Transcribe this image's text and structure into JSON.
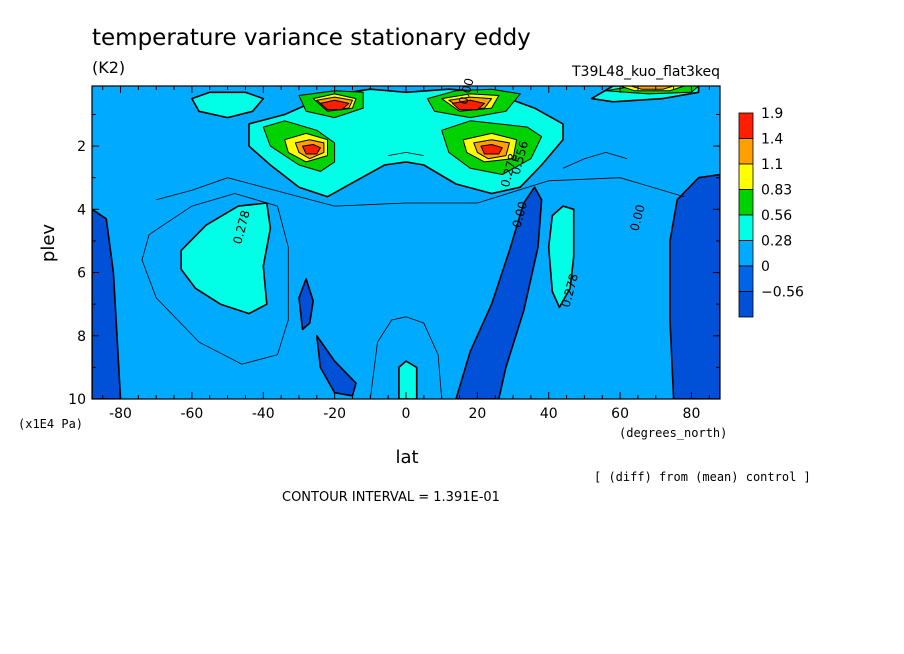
{
  "chart_data": {
    "type": "contour",
    "title": "temperature variance stationary eddy",
    "units": "(K2)",
    "run_label": "T39L48_kuo_flat3keq",
    "xlabel": "lat",
    "ylabel": "plev",
    "x_units_label": "(degrees_north)",
    "y_units_label": "(x1E4 Pa)",
    "xlim": [
      -88,
      88
    ],
    "ylim": [
      10,
      0.1
    ],
    "x_ticks": [
      -80,
      -60,
      -40,
      -20,
      0,
      20,
      40,
      60,
      80
    ],
    "y_ticks": [
      2,
      4,
      6,
      8,
      10
    ],
    "contour_interval_text": "CONTOUR INTERVAL = 1.391E-01",
    "diff_text": "[ (diff) from (mean) control ]",
    "legend": {
      "labels": [
        "1.9",
        "1.4",
        "1.1",
        "0.83",
        "0.56",
        "0.28",
        "0",
        "−0.56"
      ],
      "colors": [
        "#ff1e00",
        "#ffa000",
        "#ffff00",
        "#00d200",
        "#00ffe6",
        "#00aaff",
        "#0064e6",
        "#0050d8"
      ]
    },
    "contour_labels": [
      {
        "text": "0.278",
        "lat": -45,
        "plev": 4.6
      },
      {
        "text": "0.278",
        "lat": 47,
        "plev": 6.6
      },
      {
        "text": "0.00",
        "lat": 33,
        "plev": 4.2
      },
      {
        "text": "0.00",
        "lat": 66,
        "plev": 4.3
      },
      {
        "text": "0.278",
        "lat": 30,
        "plev": 2.8
      },
      {
        "text": "0.556",
        "lat": 33,
        "plev": 2.4
      },
      {
        "text": "0.00",
        "lat": 18,
        "plev": 0.3
      }
    ],
    "level_colors": {
      "neg": "#0050d8",
      "l0": "#00aaff",
      "l1": "#00ffe6",
      "l2": "#00d200",
      "l3": "#ffff00",
      "l4": "#ffa000",
      "l5": "#ff1e00"
    },
    "regions": [
      {
        "level": "neg",
        "pts": [
          [
            -88,
            4.0
          ],
          [
            -84,
            4.3
          ],
          [
            -82,
            6
          ],
          [
            -81,
            8
          ],
          [
            -80,
            10
          ],
          [
            -88,
            10
          ]
        ]
      },
      {
        "level": "neg",
        "pts": [
          [
            -30,
            6.8
          ],
          [
            -28,
            6.2
          ],
          [
            -26,
            6.9
          ],
          [
            -27,
            7.6
          ],
          [
            -29,
            7.8
          ]
        ]
      },
      {
        "level": "neg",
        "pts": [
          [
            -25,
            8.0
          ],
          [
            -20,
            8.8
          ],
          [
            -14,
            9.5
          ],
          [
            -15,
            9.9
          ],
          [
            -20,
            9.8
          ],
          [
            -24,
            9.0
          ]
        ]
      },
      {
        "level": "neg",
        "pts": [
          [
            14,
            10
          ],
          [
            18,
            8.5
          ],
          [
            24,
            7.0
          ],
          [
            29,
            5.3
          ],
          [
            33,
            3.8
          ],
          [
            36,
            3.3
          ],
          [
            38,
            3.7
          ],
          [
            37,
            5.2
          ],
          [
            33,
            7.2
          ],
          [
            28,
            9.0
          ],
          [
            26,
            10
          ]
        ]
      },
      {
        "level": "neg",
        "pts": [
          [
            75,
            10
          ],
          [
            74,
            7.5
          ],
          [
            74,
            5.0
          ],
          [
            76,
            3.7
          ],
          [
            82,
            3.0
          ],
          [
            88,
            2.9
          ],
          [
            88,
            10
          ]
        ]
      },
      {
        "level": "l1",
        "pts": [
          [
            -63,
            5.3
          ],
          [
            -56,
            4.5
          ],
          [
            -47,
            3.9
          ],
          [
            -39,
            3.8
          ],
          [
            -38,
            4.6
          ],
          [
            -40,
            5.8
          ],
          [
            -39,
            7.0
          ],
          [
            -44,
            7.3
          ],
          [
            -52,
            7.0
          ],
          [
            -59,
            6.5
          ],
          [
            -63,
            5.9
          ]
        ]
      },
      {
        "level": "l1",
        "pts": [
          [
            41,
            4.2
          ],
          [
            44,
            3.9
          ],
          [
            47,
            4.0
          ],
          [
            47,
            5.5
          ],
          [
            46,
            6.5
          ],
          [
            43,
            7.1
          ],
          [
            41,
            6.6
          ],
          [
            40,
            5.2
          ]
        ]
      },
      {
        "level": "l1",
        "pts": [
          [
            -2,
            10
          ],
          [
            -2,
            9.0
          ],
          [
            0,
            8.8
          ],
          [
            3,
            9.0
          ],
          [
            3,
            10
          ]
        ]
      },
      {
        "level": "l1",
        "pts": [
          [
            -60,
            0.5
          ],
          [
            -55,
            0.3
          ],
          [
            -45,
            0.3
          ],
          [
            -40,
            0.5
          ],
          [
            -43,
            0.9
          ],
          [
            -50,
            1.1
          ],
          [
            -58,
            0.9
          ]
        ]
      },
      {
        "level": "l1",
        "pts": [
          [
            -44,
            1.3
          ],
          [
            -34,
            1.0
          ],
          [
            -22,
            0.4
          ],
          [
            -10,
            0.2
          ],
          [
            0,
            0.3
          ],
          [
            12,
            0.2
          ],
          [
            24,
            0.3
          ],
          [
            36,
            0.8
          ],
          [
            44,
            1.3
          ],
          [
            44,
            1.8
          ],
          [
            38,
            2.6
          ],
          [
            32,
            3.3
          ],
          [
            24,
            3.5
          ],
          [
            14,
            3.2
          ],
          [
            5,
            2.6
          ],
          [
            0,
            2.5
          ],
          [
            -6,
            2.6
          ],
          [
            -14,
            3.1
          ],
          [
            -22,
            3.6
          ],
          [
            -30,
            3.3
          ],
          [
            -38,
            2.6
          ],
          [
            -44,
            2.0
          ]
        ]
      },
      {
        "level": "l1",
        "pts": [
          [
            52,
            0.5
          ],
          [
            58,
            0.1
          ],
          [
            82,
            0.1
          ],
          [
            82,
            0.3
          ],
          [
            72,
            0.5
          ],
          [
            58,
            0.6
          ]
        ]
      },
      {
        "level": "l2",
        "pts": [
          [
            -40,
            1.4
          ],
          [
            -34,
            1.2
          ],
          [
            -25,
            1.5
          ],
          [
            -20,
            1.9
          ],
          [
            -20,
            2.5
          ],
          [
            -24,
            2.8
          ],
          [
            -30,
            2.6
          ],
          [
            -38,
            2.0
          ]
        ]
      },
      {
        "level": "l2",
        "pts": [
          [
            10,
            1.5
          ],
          [
            18,
            1.2
          ],
          [
            26,
            1.3
          ],
          [
            34,
            1.4
          ],
          [
            38,
            1.7
          ],
          [
            35,
            2.4
          ],
          [
            27,
            2.9
          ],
          [
            18,
            2.7
          ],
          [
            12,
            2.2
          ]
        ]
      },
      {
        "level": "l2",
        "pts": [
          [
            -30,
            0.4
          ],
          [
            -20,
            0.25
          ],
          [
            -12,
            0.3
          ],
          [
            -12,
            0.8
          ],
          [
            -20,
            1.1
          ],
          [
            -28,
            0.9
          ]
        ]
      },
      {
        "level": "l2",
        "pts": [
          [
            6,
            0.5
          ],
          [
            14,
            0.25
          ],
          [
            24,
            0.2
          ],
          [
            32,
            0.35
          ],
          [
            28,
            0.9
          ],
          [
            18,
            1.1
          ],
          [
            8,
            0.9
          ]
        ]
      },
      {
        "level": "l2",
        "pts": [
          [
            56,
            0.25
          ],
          [
            64,
            0.1
          ],
          [
            82,
            0.1
          ],
          [
            80,
            0.3
          ],
          [
            68,
            0.35
          ]
        ]
      },
      {
        "level": "l3",
        "pts": [
          [
            -34,
            1.8
          ],
          [
            -28,
            1.6
          ],
          [
            -22,
            1.8
          ],
          [
            -22,
            2.3
          ],
          [
            -28,
            2.5
          ],
          [
            -33,
            2.2
          ]
        ]
      },
      {
        "level": "l3",
        "pts": [
          [
            16,
            1.8
          ],
          [
            24,
            1.6
          ],
          [
            31,
            1.8
          ],
          [
            30,
            2.4
          ],
          [
            22,
            2.5
          ],
          [
            17,
            2.2
          ]
        ]
      },
      {
        "level": "l3",
        "pts": [
          [
            -26,
            0.5
          ],
          [
            -20,
            0.35
          ],
          [
            -14,
            0.5
          ],
          [
            -15,
            0.8
          ],
          [
            -22,
            0.9
          ]
        ]
      },
      {
        "level": "l3",
        "pts": [
          [
            10,
            0.5
          ],
          [
            18,
            0.35
          ],
          [
            26,
            0.4
          ],
          [
            24,
            0.8
          ],
          [
            15,
            0.9
          ]
        ]
      },
      {
        "level": "l3",
        "pts": [
          [
            60,
            0.1
          ],
          [
            78,
            0.1
          ],
          [
            74,
            0.25
          ],
          [
            64,
            0.25
          ]
        ]
      },
      {
        "level": "l4",
        "pts": [
          [
            -31,
            1.9
          ],
          [
            -27,
            1.8
          ],
          [
            -23,
            1.9
          ],
          [
            -23,
            2.2
          ],
          [
            -27,
            2.4
          ],
          [
            -30,
            2.2
          ]
        ]
      },
      {
        "level": "l4",
        "pts": [
          [
            19,
            1.9
          ],
          [
            24,
            1.8
          ],
          [
            29,
            1.9
          ],
          [
            28,
            2.3
          ],
          [
            23,
            2.4
          ],
          [
            20,
            2.2
          ]
        ]
      },
      {
        "level": "l4",
        "pts": [
          [
            -25,
            0.55
          ],
          [
            -20,
            0.45
          ],
          [
            -15,
            0.55
          ],
          [
            -16,
            0.8
          ],
          [
            -22,
            0.85
          ]
        ]
      },
      {
        "level": "l4",
        "pts": [
          [
            12,
            0.55
          ],
          [
            18,
            0.45
          ],
          [
            24,
            0.5
          ],
          [
            22,
            0.8
          ],
          [
            16,
            0.85
          ]
        ]
      },
      {
        "level": "l4",
        "pts": [
          [
            63,
            0.1
          ],
          [
            75,
            0.1
          ],
          [
            72,
            0.2
          ],
          [
            66,
            0.2
          ]
        ]
      },
      {
        "level": "l5",
        "pts": [
          [
            -29,
            2.0
          ],
          [
            -26,
            1.95
          ],
          [
            -24,
            2.05
          ],
          [
            -25,
            2.25
          ],
          [
            -28,
            2.25
          ]
        ]
      },
      {
        "level": "l5",
        "pts": [
          [
            21,
            2.0
          ],
          [
            24,
            1.95
          ],
          [
            27,
            2.05
          ],
          [
            26,
            2.25
          ],
          [
            22,
            2.25
          ]
        ]
      },
      {
        "level": "l5",
        "pts": [
          [
            -24,
            0.65
          ],
          [
            -20,
            0.55
          ],
          [
            -16,
            0.65
          ],
          [
            -18,
            0.85
          ],
          [
            -22,
            0.85
          ]
        ]
      },
      {
        "level": "l5",
        "pts": [
          [
            13,
            0.65
          ],
          [
            18,
            0.55
          ],
          [
            22,
            0.65
          ],
          [
            20,
            0.85
          ],
          [
            15,
            0.85
          ]
        ]
      }
    ],
    "contour_lines": [
      {
        "pts": [
          [
            -72,
            4.8
          ],
          [
            -60,
            3.9
          ],
          [
            -48,
            3.5
          ],
          [
            -36,
            3.9
          ],
          [
            -33,
            5.2
          ],
          [
            -33,
            7.5
          ],
          [
            -36,
            8.6
          ],
          [
            -46,
            8.9
          ],
          [
            -58,
            8.2
          ],
          [
            -70,
            6.8
          ],
          [
            -74,
            5.6
          ]
        ],
        "closed": true
      },
      {
        "pts": [
          [
            -10,
            10
          ],
          [
            -8,
            8.2
          ],
          [
            -4,
            7.5
          ],
          [
            0,
            7.4
          ],
          [
            5,
            7.6
          ],
          [
            9,
            8.6
          ],
          [
            10,
            10
          ]
        ],
        "closed": false
      },
      {
        "pts": [
          [
            -70,
            3.7
          ],
          [
            -60,
            3.4
          ],
          [
            -50,
            3.0
          ],
          [
            -40,
            3.3
          ],
          [
            -20,
            3.9
          ],
          [
            0,
            3.8
          ],
          [
            20,
            3.8
          ],
          [
            40,
            3.1
          ],
          [
            60,
            3.0
          ],
          [
            78,
            3.6
          ]
        ],
        "closed": false
      },
      {
        "pts": [
          [
            44,
            2.7
          ],
          [
            50,
            2.4
          ],
          [
            56,
            2.2
          ],
          [
            62,
            2.4
          ]
        ],
        "closed": false
      },
      {
        "pts": [
          [
            -5,
            2.3
          ],
          [
            0,
            2.2
          ],
          [
            5,
            2.3
          ]
        ],
        "closed": false
      }
    ]
  }
}
